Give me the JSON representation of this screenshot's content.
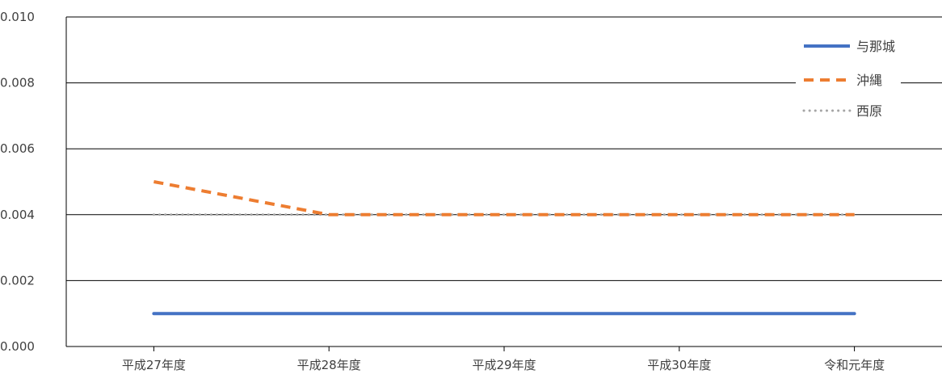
{
  "chart_data": {
    "type": "line",
    "categories": [
      "平成27年度",
      "平成28年度",
      "平成29年度",
      "平成30年度",
      "令和元年度"
    ],
    "ylim": [
      0,
      0.01
    ],
    "yticks": [
      "0.000",
      "0.002",
      "0.004",
      "0.006",
      "0.008",
      "0.010"
    ],
    "grid": true,
    "legend_position": "top-right",
    "series": [
      {
        "name": "与那城",
        "values": [
          0.001,
          0.001,
          0.001,
          0.001,
          0.001
        ],
        "color": "#4472C4",
        "style": "solid"
      },
      {
        "name": "沖縄",
        "values": [
          0.005,
          0.004,
          0.004,
          0.004,
          0.004
        ],
        "color": "#ED7D31",
        "style": "dashed"
      },
      {
        "name": "西原",
        "values": [
          0.004,
          0.004,
          0.004,
          0.004,
          0.004
        ],
        "color": "#A5A5A5",
        "style": "dotted"
      }
    ]
  }
}
